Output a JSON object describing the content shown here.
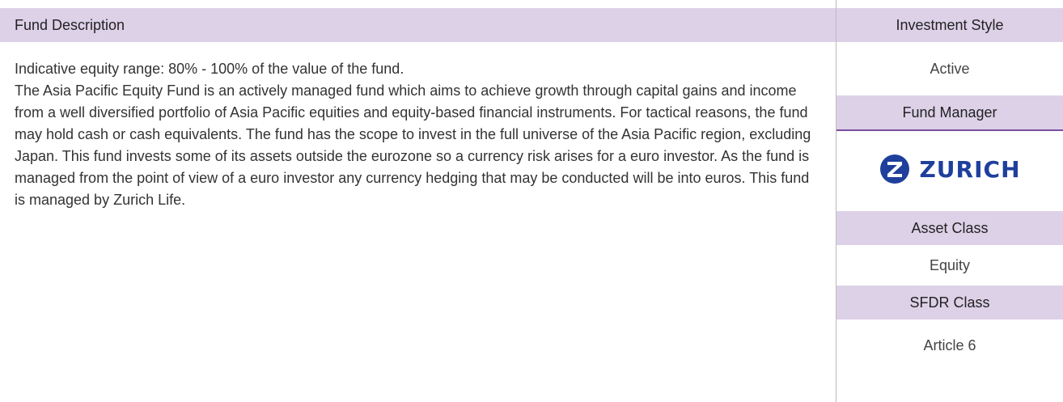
{
  "fund_description": {
    "title": "Fund Description",
    "paragraphs": [
      "Indicative equity range: 80% - 100% of the value of the fund.",
      "The Asia Pacific Equity Fund is an actively managed fund which aims to achieve growth through capital gains and income from a well diversified portfolio of Asia Pacific equities and equity-based financial instruments. For tactical reasons, the fund may hold cash or cash equivalents. The fund has the scope to invest in the full universe of the Asia Pacific region, excluding Japan. This fund invests some of its assets outside the eurozone so a currency risk arises for a euro investor. As the fund is managed from the point of view of a euro investor any currency hedging that may be conducted will be into euros. This fund is managed by Zurich Life."
    ]
  },
  "sidebar": {
    "investment_style": {
      "heading": "Investment Style",
      "value": "Active"
    },
    "fund_manager": {
      "heading": "Fund Manager",
      "logo": "ZURICH"
    },
    "asset_class": {
      "heading": "Asset Class",
      "value": "Equity"
    },
    "sfdr_class": {
      "heading": "SFDR Class",
      "value": "Article 6"
    }
  }
}
